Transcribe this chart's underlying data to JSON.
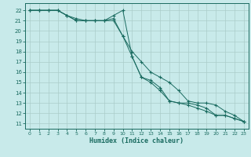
{
  "title": "",
  "xlabel": "Humidex (Indice chaleur)",
  "bg_color": "#c8eaea",
  "grid_color": "#aaccca",
  "line_color": "#1a6b60",
  "spine_color": "#1a6b60",
  "xlim": [
    -0.5,
    23.5
  ],
  "ylim": [
    10.5,
    22.7
  ],
  "yticks": [
    11,
    12,
    13,
    14,
    15,
    16,
    17,
    18,
    19,
    20,
    21,
    22
  ],
  "xticks": [
    0,
    1,
    2,
    3,
    4,
    5,
    6,
    7,
    8,
    9,
    10,
    11,
    12,
    13,
    14,
    15,
    16,
    17,
    18,
    19,
    20,
    21,
    22,
    23
  ],
  "line1_x": [
    0,
    1,
    2,
    3,
    4,
    5,
    6,
    7,
    8,
    9,
    10,
    11,
    12,
    13,
    14,
    15,
    16,
    17,
    18,
    19,
    20,
    21,
    22,
    23
  ],
  "line1_y": [
    22,
    22,
    22,
    22,
    21.5,
    21.2,
    21.0,
    21.0,
    21.0,
    21.5,
    22.0,
    17.5,
    15.5,
    15.2,
    14.5,
    13.2,
    13.0,
    13.0,
    12.8,
    12.5,
    11.8,
    11.8,
    11.5,
    11.2
  ],
  "line2_x": [
    0,
    1,
    2,
    3,
    4,
    5,
    6,
    7,
    8,
    9,
    10,
    11,
    12,
    13,
    14,
    15,
    16,
    17,
    18,
    19,
    20,
    21,
    22,
    23
  ],
  "line2_y": [
    22,
    22,
    22,
    22,
    21.5,
    21.0,
    21.0,
    21.0,
    21.0,
    21.2,
    19.5,
    17.5,
    15.5,
    15.0,
    14.2,
    13.2,
    13.0,
    12.8,
    12.5,
    12.2,
    11.8,
    11.8,
    11.5,
    11.2
  ],
  "line3_x": [
    0,
    1,
    2,
    3,
    4,
    5,
    6,
    7,
    8,
    9,
    10,
    11,
    12,
    13,
    14,
    15,
    16,
    17,
    18,
    19,
    20,
    21,
    22,
    23
  ],
  "line3_y": [
    22,
    22,
    22,
    22,
    21.5,
    21.0,
    21.0,
    21.0,
    21.0,
    21.0,
    19.5,
    18.0,
    17.0,
    16.0,
    15.5,
    15.0,
    14.2,
    13.2,
    13.0,
    13.0,
    12.8,
    12.2,
    11.8,
    11.2
  ]
}
